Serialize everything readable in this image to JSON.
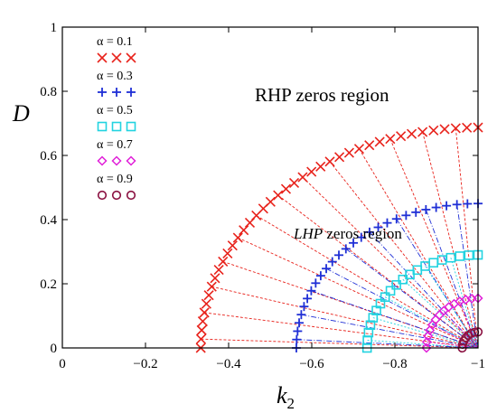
{
  "chart_data": {
    "type": "scatter",
    "title": "",
    "xlabel": "k",
    "xlabel_sub": "2",
    "ylabel": "D",
    "xlim": [
      0,
      -1
    ],
    "ylim": [
      0,
      1
    ],
    "xticks": [
      {
        "value": 0,
        "label": "0"
      },
      {
        "value": -0.2,
        "label": "−0.2"
      },
      {
        "value": -0.4,
        "label": "−0.4"
      },
      {
        "value": -0.6,
        "label": "−0.6"
      },
      {
        "value": -0.8,
        "label": "−0.8"
      },
      {
        "value": -1,
        "label": "−1"
      }
    ],
    "yticks": [
      {
        "value": 0,
        "label": "0"
      },
      {
        "value": 0.2,
        "label": "0.2"
      },
      {
        "value": 0.4,
        "label": "0.4"
      },
      {
        "value": 0.6,
        "label": "0.6"
      },
      {
        "value": 0.8,
        "label": "0.8"
      },
      {
        "value": 1,
        "label": "1"
      }
    ],
    "grid": false,
    "legend_position": "top-left",
    "annotations": [
      {
        "text": "RHP zeros region",
        "italic_prefix": "",
        "x": -0.6,
        "y": 0.75
      },
      {
        "text": " zeros region",
        "italic_prefix": "LHP",
        "x": -0.74,
        "y": 0.33
      }
    ],
    "series": [
      {
        "name": "α = 0.1",
        "marker": "x",
        "color": "#e8221b",
        "dash": "3,2",
        "start_k": -0.333,
        "end_d": 0.687,
        "n": 40
      },
      {
        "name": "α = 0.3",
        "marker": "plus",
        "color": "#1f2fd6",
        "dash": "6,2,1,2",
        "start_k": -0.563,
        "end_d": 0.45,
        "n": 28
      },
      {
        "name": "α = 0.5",
        "marker": "square",
        "color": "#22d3e0",
        "dash": "2,2",
        "start_k": -0.733,
        "end_d": 0.29,
        "n": 20
      },
      {
        "name": "α = 0.7",
        "marker": "diamond",
        "color": "#e020d8",
        "dash": "2,2",
        "start_k": -0.876,
        "end_d": 0.155,
        "n": 14
      },
      {
        "name": "α = 0.9",
        "marker": "circle",
        "color": "#8a1040",
        "dash": "1,1",
        "start_k": -0.962,
        "end_d": 0.05,
        "n": 8
      }
    ]
  }
}
